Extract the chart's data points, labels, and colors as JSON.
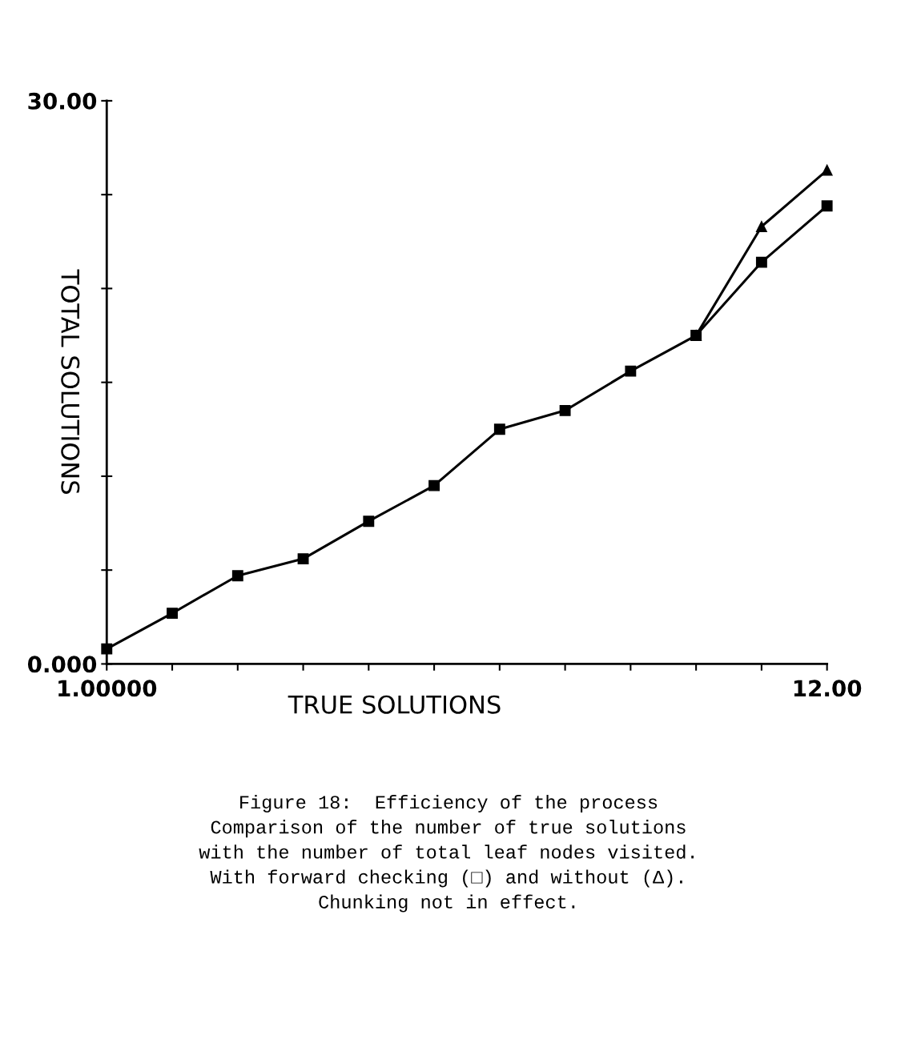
{
  "chart_data": {
    "type": "line",
    "x": [
      1,
      2,
      3,
      4,
      5,
      6,
      7,
      8,
      9,
      10,
      11,
      12
    ],
    "series": [
      {
        "color": "#000000",
        "marker": "triangle",
        "x": [
          10,
          11,
          12
        ],
        "values": [
          17.5,
          23.3,
          26.3
        ]
      },
      {
        "color": "#000000",
        "marker": "square",
        "values": [
          0.8,
          2.7,
          4.7,
          5.6,
          7.6,
          9.5,
          12.5,
          13.5,
          15.6,
          17.5,
          21.4,
          24.4
        ]
      }
    ],
    "xlabel": "TRUE SOLUTIONS",
    "ylabel": "TOTAL SOLUTIONS",
    "xlim": [
      1,
      12
    ],
    "ylim": [
      0,
      30
    ],
    "xticks": [
      {
        "value": 1,
        "label": "1.00000"
      },
      {
        "value": 2,
        "label": null
      },
      {
        "value": 3,
        "label": null
      },
      {
        "value": 4,
        "label": null
      },
      {
        "value": 5,
        "label": null
      },
      {
        "value": 6,
        "label": null
      },
      {
        "value": 7,
        "label": null
      },
      {
        "value": 8,
        "label": null
      },
      {
        "value": 9,
        "label": null
      },
      {
        "value": 10,
        "label": null
      },
      {
        "value": 11,
        "label": null
      },
      {
        "value": 12,
        "label": "12.00"
      }
    ],
    "yticks": [
      {
        "value": 0,
        "label": "0.000"
      },
      {
        "value": 5,
        "label": null
      },
      {
        "value": 10,
        "label": null
      },
      {
        "value": 15,
        "label": null
      },
      {
        "value": 20,
        "label": null
      },
      {
        "value": 25,
        "label": null
      },
      {
        "value": 30,
        "label": "30.00"
      }
    ],
    "grid": false,
    "line_style": "solid",
    "annotations": [
      "Figure 18:  Efficiency of the process",
      "Comparison of the number of true solutions",
      "with the number of total leaf nodes visited.",
      "With forward checking (□) and without (Δ).",
      "Chunking not in effect."
    ]
  }
}
